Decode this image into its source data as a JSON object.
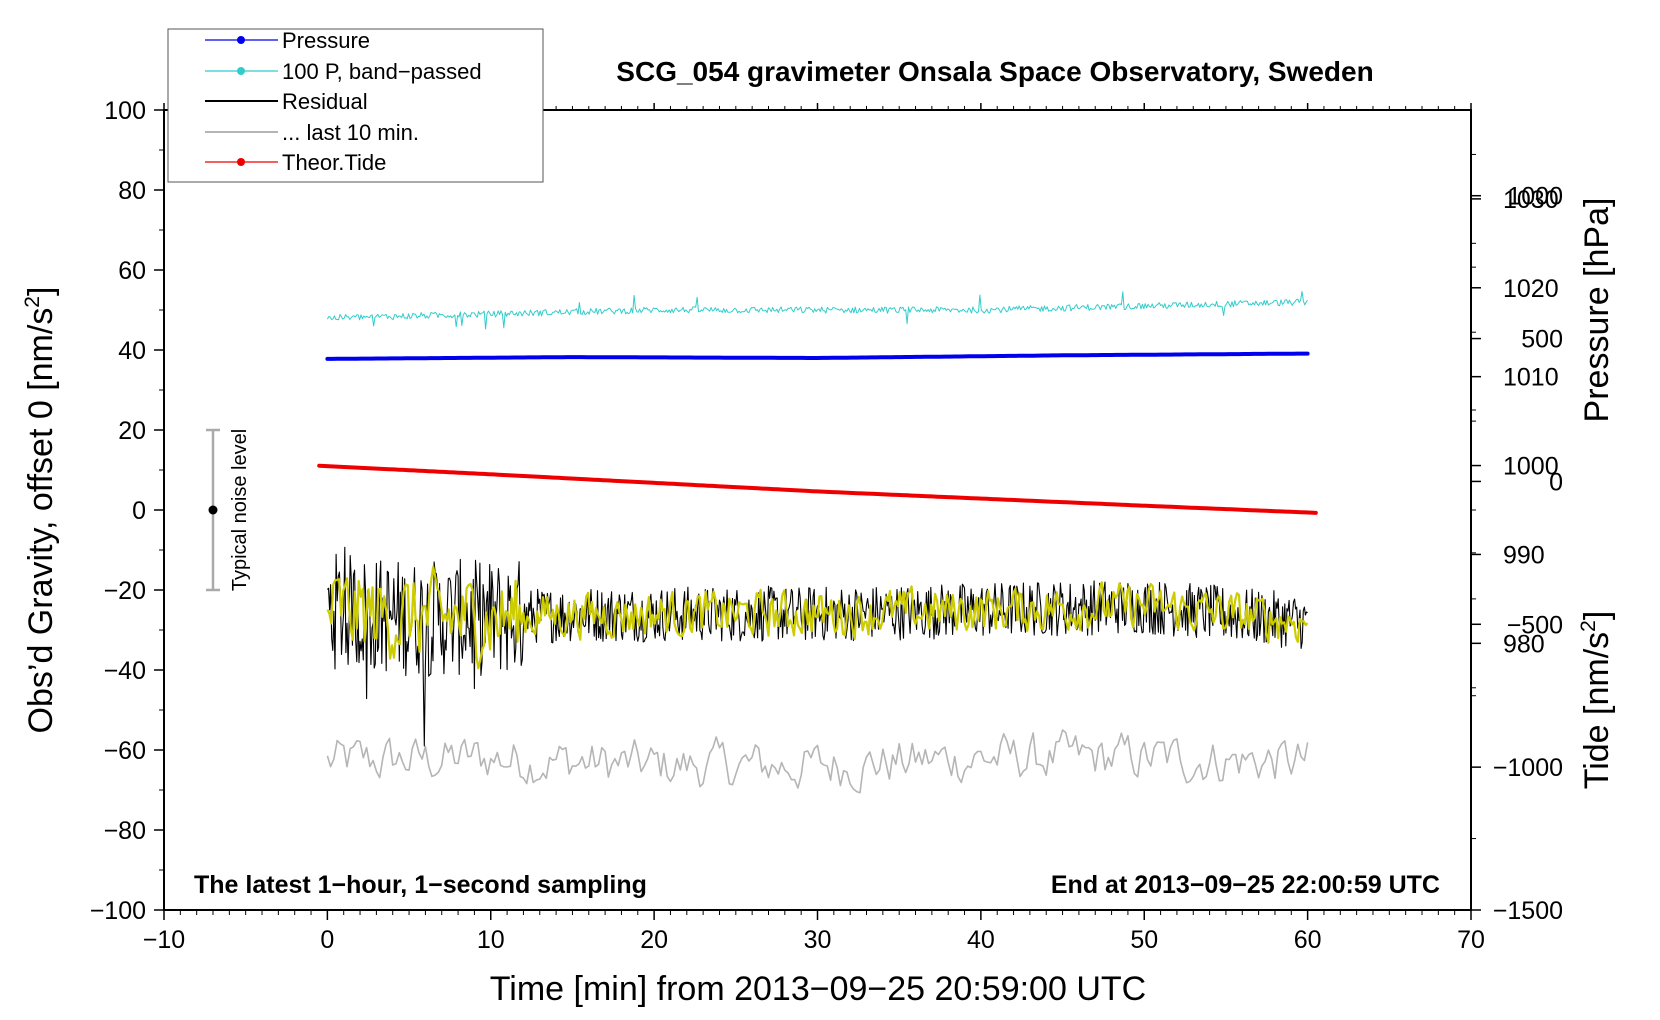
{
  "chart_data": {
    "type": "line",
    "title": "SCG_054 gravimeter Onsala Space Observatory, Sweden",
    "xlabel": "Time [min] from 2013−09−25 20:59:00 UTC",
    "ylabel": "Obs’d Gravity, offset 0 [nm/s",
    "ylabel_sup": "2",
    "ylabel_tail": "]",
    "y2label": "Pressure [hPa]",
    "y3label": "Tide [nm/s",
    "y3label_sup": "2",
    "y3label_tail": "]",
    "xlim": [
      -10,
      70
    ],
    "ylim": [
      -100,
      100
    ],
    "pressure_axis_range": [
      950,
      1040
    ],
    "tide_axis_range": [
      -1500,
      1300
    ],
    "x_ticks": [
      "−10",
      "0",
      "10",
      "20",
      "30",
      "40",
      "50",
      "60",
      "70"
    ],
    "y_ticks": [
      "100",
      "80",
      "60",
      "40",
      "20",
      "0",
      "−20",
      "−40",
      "−60",
      "−80",
      "−100"
    ],
    "pressure_ticks": [
      "1030",
      "1020",
      "1010",
      "1000",
      "990",
      "980"
    ],
    "tide_ticks": [
      "1000",
      "500",
      "0",
      "−500",
      "−1000",
      "−1500"
    ],
    "note_left": "The latest 1−hour, 1−second sampling",
    "note_right": "End at 2013−09−25 22:00:59 UTC",
    "noise_label": "Typical noise level",
    "noise_bar": {
      "center": 0,
      "half_range": 20
    },
    "legend": [
      "Pressure",
      "100 P, band−passed",
      "Residual",
      "... last 10 min.",
      "Theor.Tide"
    ],
    "series": [
      {
        "name": "Pressure",
        "axis": "pressure",
        "color": "#0000ee",
        "x": [
          0,
          15,
          30,
          45,
          60
        ],
        "values": [
          1012.0,
          1012.2,
          1012.1,
          1012.4,
          1012.6
        ]
      },
      {
        "name": "100 P, band−passed",
        "axis": "gravity",
        "color": "#33cccc",
        "x": [
          0,
          10,
          20,
          30,
          40,
          50,
          60
        ],
        "values": [
          48,
          49,
          50,
          50,
          50,
          51,
          52
        ],
        "style": "noisy"
      },
      {
        "name": "Residual",
        "axis": "gravity",
        "color": "#000000",
        "x": [
          0,
          5,
          10,
          15,
          20,
          30,
          40,
          50,
          60
        ],
        "values": [
          -25,
          -27,
          -27,
          -26,
          -26,
          -26,
          -25,
          -24,
          -28
        ],
        "style": "noisy"
      },
      {
        "name": "... last 10 min.",
        "axis": "gravity",
        "color": "#b5b5b5",
        "x": [
          0,
          10,
          20,
          30,
          40,
          50,
          60
        ],
        "values": [
          -63,
          -62,
          -64,
          -64,
          -62,
          -62,
          -63
        ],
        "style": "noisy"
      },
      {
        "name": "Theor.Tide",
        "axis": "tide",
        "color": "#ee0000",
        "x": [
          -0.5,
          10,
          20,
          30,
          40,
          50,
          60.5
        ],
        "values": [
          55,
          25,
          -5,
          -35,
          -60,
          -85,
          -110
        ]
      }
    ],
    "yellow_trace_color": "#cccc00",
    "legend_placement": "top-left"
  }
}
